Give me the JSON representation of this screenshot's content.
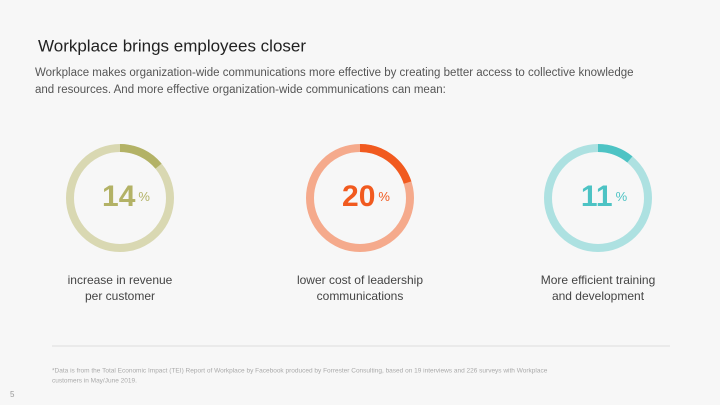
{
  "header": {
    "title": "Workplace brings employees closer",
    "subtitle_lines": [
      "Workplace makes organization-wide communications more effective by creating better access to collective knowledge",
      "and resources. And more effective organization-wide communications can mean:"
    ]
  },
  "stats": [
    {
      "value": 14,
      "unit": "%",
      "caption_lines": [
        "increase in revenue",
        "per customer"
      ],
      "color": "#b3b266",
      "track_color": "#d9d8b2"
    },
    {
      "value": 20,
      "unit": "%",
      "caption_lines": [
        "lower cost of leadership",
        "communications"
      ],
      "color": "#f15a1f",
      "track_color": "#f5aa8c"
    },
    {
      "value": 11,
      "unit": "%",
      "caption_lines": [
        "More efficient training",
        "and development"
      ],
      "color": "#4dc3c4",
      "track_color": "#ade1e1"
    }
  ],
  "footnote_lines": [
    "*Data is from the Total Economic Impact (TEI) Report of Workplace by Facebook produced by Forrester Consulting, based on 19 interviews and 226 surveys with Workplace",
    "customers in May/June 2019."
  ],
  "page_number": "5"
}
